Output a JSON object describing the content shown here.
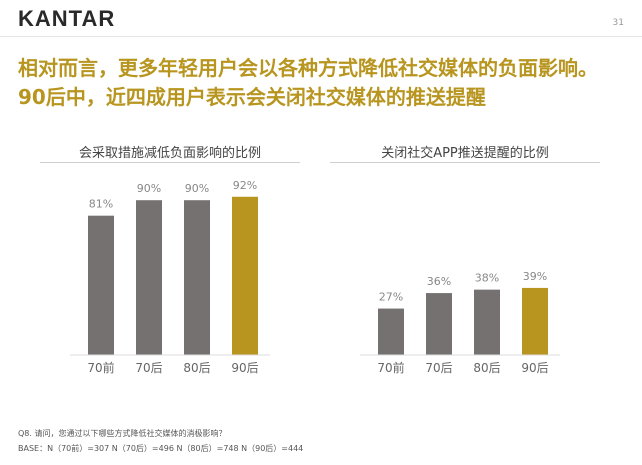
{
  "header": {
    "logo": "KANTAR",
    "page_number": "31"
  },
  "headline": {
    "line1": "相对而言，更多年轻用户会以各种方式降低社交媒体的负面影响。",
    "line2": "90后中，近四成用户表示会关闭社交媒体的推送提醒"
  },
  "chart_data": [
    {
      "type": "bar",
      "title": "会采取措施减低负面影响的比例",
      "categories": [
        "70前",
        "70后",
        "80后",
        "90后"
      ],
      "values": [
        81,
        90,
        90,
        92
      ],
      "data_labels": [
        "81%",
        "90%",
        "90%",
        "92%"
      ],
      "unit": "%",
      "ylim": [
        0,
        100
      ],
      "grid": false,
      "colors": [
        "#767171",
        "#767171",
        "#767171",
        "#b8951f"
      ]
    },
    {
      "type": "bar",
      "title": "关闭社交APP推送提醒的比例",
      "categories": [
        "70前",
        "70后",
        "80后",
        "90后"
      ],
      "values": [
        27,
        36,
        38,
        39
      ],
      "data_labels": [
        "27%",
        "36%",
        "38%",
        "39%"
      ],
      "unit": "%",
      "ylim": [
        0,
        100
      ],
      "grid": false,
      "colors": [
        "#767171",
        "#767171",
        "#767171",
        "#b8951f"
      ]
    }
  ],
  "footnote": {
    "question": "Q8. 请问，您通过以下哪些方式降低社交媒体的消极影响？",
    "base": "BASE：N（70前）=307   N（70后）=496   N（80后）=748   N（90后）=444"
  }
}
